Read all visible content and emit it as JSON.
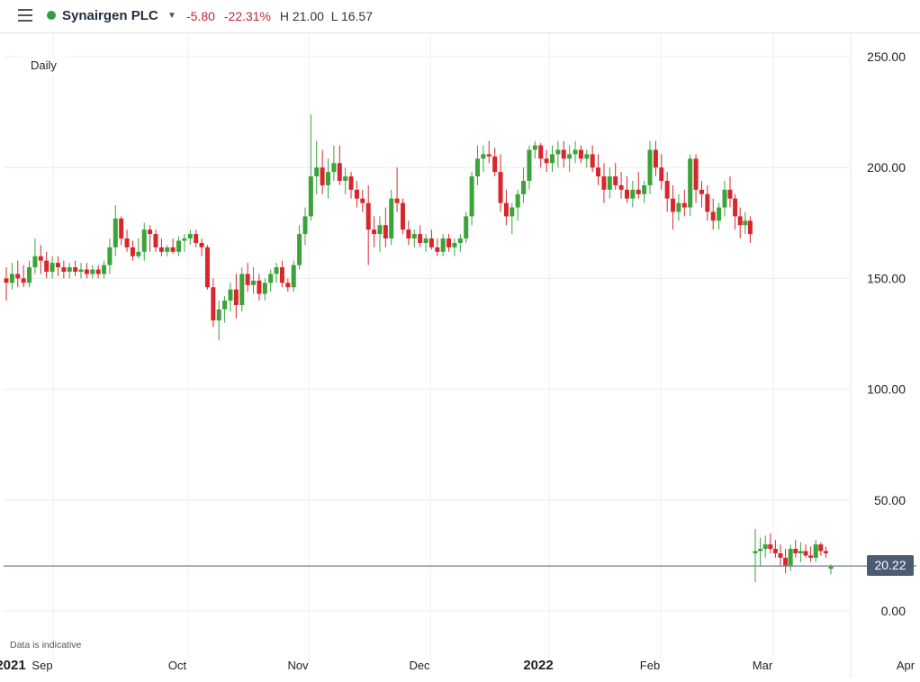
{
  "header": {
    "menu_icon": "hamburger-menu-icon",
    "status_color": "#2ea043",
    "title": "Synairgen PLC",
    "caret_icon": "caret-down-icon",
    "change_abs": "-5.80",
    "change_pct": "-22.31%",
    "high": "H 21.00",
    "low": "L 16.57"
  },
  "interval": "Daily",
  "disclaimer": "Data is indicative",
  "current_price": "20.22",
  "colors": {
    "up": "#3aa33a",
    "down": "#d9262c",
    "price_line": "#8a929c",
    "price_tag": "#4a5b73"
  },
  "chart_data": {
    "type": "candlestick",
    "y_ticks": [
      "250.00",
      "200.00",
      "150.00",
      "100.00",
      "50.00",
      "0.00"
    ],
    "ylim": [
      -10,
      260
    ],
    "x_ticks": [
      "2021",
      "Sep",
      "Oct",
      "Nov",
      "Dec",
      "2022",
      "Feb",
      "Mar",
      "Apr"
    ],
    "grid": true,
    "last_price": 20.22,
    "candles": [
      [
        150,
        155,
        140,
        148
      ],
      [
        148,
        157,
        145,
        152
      ],
      [
        152,
        158,
        146,
        150
      ],
      [
        150,
        156,
        146,
        148
      ],
      [
        148,
        158,
        146,
        155
      ],
      [
        155,
        168,
        152,
        160
      ],
      [
        160,
        165,
        152,
        158
      ],
      [
        158,
        162,
        150,
        153
      ],
      [
        153,
        160,
        150,
        157
      ],
      [
        157,
        160,
        151,
        155
      ],
      [
        155,
        158,
        150,
        153
      ],
      [
        153,
        157,
        150,
        155
      ],
      [
        155,
        158,
        151,
        153
      ],
      [
        153,
        157,
        150,
        154
      ],
      [
        154,
        157,
        150,
        152
      ],
      [
        152,
        156,
        150,
        154
      ],
      [
        154,
        156,
        150,
        152
      ],
      [
        152,
        158,
        150,
        156
      ],
      [
        156,
        168,
        152,
        164
      ],
      [
        164,
        183,
        160,
        177
      ],
      [
        177,
        178,
        165,
        168
      ],
      [
        168,
        172,
        162,
        164
      ],
      [
        164,
        167,
        158,
        160
      ],
      [
        160,
        168,
        159,
        162
      ],
      [
        162,
        175,
        158,
        172
      ],
      [
        172,
        174,
        162,
        170
      ],
      [
        170,
        172,
        162,
        164
      ],
      [
        164,
        168,
        160,
        162
      ],
      [
        162,
        165,
        160,
        164
      ],
      [
        164,
        168,
        161,
        162
      ],
      [
        162,
        169,
        160,
        167
      ],
      [
        167,
        170,
        162,
        168
      ],
      [
        168,
        172,
        165,
        170
      ],
      [
        170,
        172,
        164,
        166
      ],
      [
        166,
        168,
        160,
        164
      ],
      [
        164,
        165,
        145,
        146
      ],
      [
        146,
        150,
        128,
        131
      ],
      [
        131,
        140,
        122,
        136
      ],
      [
        136,
        142,
        130,
        140
      ],
      [
        140,
        148,
        135,
        145
      ],
      [
        145,
        152,
        132,
        138
      ],
      [
        138,
        155,
        135,
        152
      ],
      [
        152,
        157,
        144,
        147
      ],
      [
        147,
        155,
        143,
        149
      ],
      [
        149,
        152,
        140,
        143
      ],
      [
        143,
        150,
        140,
        148
      ],
      [
        148,
        154,
        144,
        152
      ],
      [
        152,
        157,
        148,
        155
      ],
      [
        155,
        158,
        146,
        148
      ],
      [
        148,
        150,
        144,
        146
      ],
      [
        146,
        158,
        144,
        156
      ],
      [
        156,
        174,
        154,
        170
      ],
      [
        170,
        182,
        165,
        178
      ],
      [
        178,
        224,
        176,
        196
      ],
      [
        196,
        212,
        188,
        200
      ],
      [
        200,
        208,
        188,
        192
      ],
      [
        192,
        204,
        186,
        198
      ],
      [
        198,
        210,
        194,
        202
      ],
      [
        202,
        210,
        192,
        194
      ],
      [
        194,
        200,
        188,
        196
      ],
      [
        196,
        198,
        186,
        190
      ],
      [
        190,
        194,
        182,
        186
      ],
      [
        186,
        190,
        180,
        184
      ],
      [
        184,
        192,
        156,
        172
      ],
      [
        172,
        178,
        164,
        170
      ],
      [
        170,
        178,
        162,
        174
      ],
      [
        174,
        182,
        164,
        168
      ],
      [
        168,
        190,
        165,
        186
      ],
      [
        186,
        200,
        180,
        184
      ],
      [
        184,
        186,
        170,
        172
      ],
      [
        172,
        176,
        165,
        168
      ],
      [
        168,
        172,
        164,
        170
      ],
      [
        170,
        174,
        164,
        166
      ],
      [
        166,
        170,
        162,
        168
      ],
      [
        168,
        172,
        163,
        164
      ],
      [
        164,
        168,
        160,
        162
      ],
      [
        162,
        170,
        160,
        168
      ],
      [
        168,
        170,
        162,
        164
      ],
      [
        164,
        168,
        160,
        166
      ],
      [
        166,
        170,
        162,
        168
      ],
      [
        168,
        180,
        166,
        178
      ],
      [
        178,
        198,
        174,
        196
      ],
      [
        196,
        210,
        192,
        204
      ],
      [
        204,
        210,
        198,
        206
      ],
      [
        206,
        212,
        202,
        205
      ],
      [
        205,
        209,
        196,
        198
      ],
      [
        198,
        206,
        180,
        184
      ],
      [
        184,
        190,
        174,
        178
      ],
      [
        178,
        184,
        170,
        182
      ],
      [
        182,
        190,
        176,
        188
      ],
      [
        188,
        200,
        184,
        194
      ],
      [
        194,
        210,
        190,
        208
      ],
      [
        208,
        212,
        204,
        210
      ],
      [
        210,
        211,
        200,
        204
      ],
      [
        204,
        208,
        198,
        202
      ],
      [
        202,
        210,
        198,
        206
      ],
      [
        206,
        212,
        200,
        208
      ],
      [
        208,
        212,
        200,
        204
      ],
      [
        204,
        210,
        198,
        206
      ],
      [
        206,
        212,
        202,
        208
      ],
      [
        208,
        210,
        202,
        204
      ],
      [
        204,
        208,
        200,
        206
      ],
      [
        206,
        210,
        198,
        200
      ],
      [
        200,
        206,
        192,
        196
      ],
      [
        196,
        202,
        184,
        190
      ],
      [
        190,
        200,
        186,
        196
      ],
      [
        196,
        202,
        190,
        192
      ],
      [
        192,
        198,
        186,
        190
      ],
      [
        190,
        196,
        184,
        186
      ],
      [
        186,
        194,
        182,
        190
      ],
      [
        190,
        198,
        186,
        188
      ],
      [
        188,
        194,
        184,
        192
      ],
      [
        192,
        212,
        188,
        208
      ],
      [
        208,
        212,
        196,
        200
      ],
      [
        200,
        206,
        190,
        194
      ],
      [
        194,
        198,
        180,
        186
      ],
      [
        186,
        192,
        172,
        180
      ],
      [
        180,
        188,
        176,
        184
      ],
      [
        184,
        190,
        178,
        182
      ],
      [
        182,
        206,
        178,
        204
      ],
      [
        204,
        206,
        184,
        190
      ],
      [
        190,
        194,
        182,
        188
      ],
      [
        188,
        192,
        176,
        180
      ],
      [
        180,
        186,
        172,
        176
      ],
      [
        176,
        184,
        172,
        182
      ],
      [
        182,
        194,
        178,
        190
      ],
      [
        190,
        196,
        182,
        186
      ],
      [
        186,
        188,
        172,
        178
      ],
      [
        178,
        182,
        168,
        174
      ],
      [
        174,
        180,
        170,
        176
      ],
      [
        176,
        178,
        166,
        170
      ],
      [
        26,
        37,
        13,
        27
      ],
      [
        27,
        33,
        20,
        28
      ],
      [
        28,
        34,
        24,
        30
      ],
      [
        30,
        35,
        26,
        28
      ],
      [
        28,
        32,
        24,
        26
      ],
      [
        26,
        30,
        20,
        24
      ],
      [
        24,
        28,
        17,
        20
      ],
      [
        20,
        30,
        18,
        28
      ],
      [
        28,
        32,
        24,
        26
      ],
      [
        26,
        31,
        22,
        27
      ],
      [
        27,
        30,
        24,
        25
      ],
      [
        25,
        29,
        22,
        24
      ],
      [
        24,
        32,
        22,
        30
      ],
      [
        30,
        31,
        25,
        27
      ],
      [
        27,
        29,
        24,
        26
      ],
      [
        19,
        21,
        16.57,
        20.22
      ]
    ]
  }
}
